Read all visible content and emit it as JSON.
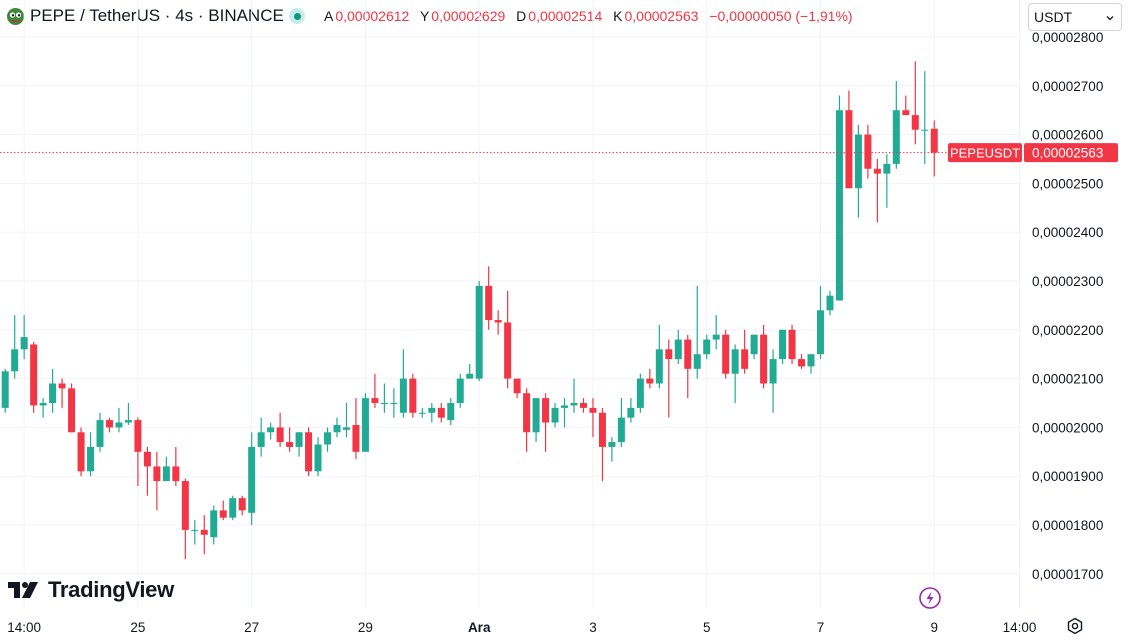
{
  "header": {
    "symbol_title": "PEPE / TetherUS · 4s · BINANCE",
    "open_label": "A",
    "open_value": "0,00002612",
    "high_label": "Y",
    "high_value": "0,00002629",
    "low_label": "D",
    "low_value": "0,00002514",
    "close_label": "K",
    "close_value": "0,00002563",
    "change": "−0,00000050 (−1,91%)"
  },
  "currency_select": {
    "value": "USDT"
  },
  "price_tag": {
    "symbol": "PEPEUSDT",
    "value": "0,00002563"
  },
  "watermark": {
    "text": "TradingView"
  },
  "colors": {
    "up": "#22ab94",
    "down": "#f23645",
    "grid": "#f0f3fa",
    "axis_text": "#131722"
  },
  "chart_data": {
    "type": "candlestick",
    "y_unit": "USDT",
    "ylim": [
      1.69e-05,
      2.84e-05
    ],
    "y_ticks": [
      {
        "value": 2.8e-05,
        "label": "0,00002800"
      },
      {
        "value": 2.7e-05,
        "label": "0,00002700"
      },
      {
        "value": 2.6e-05,
        "label": "0,00002600"
      },
      {
        "value": 2.5e-05,
        "label": "0,00002500"
      },
      {
        "value": 2.4e-05,
        "label": "0,00002400"
      },
      {
        "value": 2.3e-05,
        "label": "0,00002300"
      },
      {
        "value": 2.2e-05,
        "label": "0,00002200"
      },
      {
        "value": 2.1e-05,
        "label": "0,00002100"
      },
      {
        "value": 2e-05,
        "label": "0,00002000"
      },
      {
        "value": 1.9e-05,
        "label": "0,00001900"
      },
      {
        "value": 1.8e-05,
        "label": "0,00001800"
      },
      {
        "value": 1.7e-05,
        "label": "0,00001700"
      }
    ],
    "x_ticks": [
      {
        "index": 2,
        "label": "14:00",
        "bold": false
      },
      {
        "index": 14,
        "label": "25",
        "bold": false
      },
      {
        "index": 26,
        "label": "27",
        "bold": false
      },
      {
        "index": 38,
        "label": "29",
        "bold": false
      },
      {
        "index": 50,
        "label": "Ara",
        "bold": true
      },
      {
        "index": 62,
        "label": "3",
        "bold": false
      },
      {
        "index": 74,
        "label": "5",
        "bold": false
      },
      {
        "index": 86,
        "label": "7",
        "bold": false
      },
      {
        "index": 98,
        "label": "9",
        "bold": false
      },
      {
        "index": 107,
        "label": "14:00",
        "bold": false
      }
    ],
    "last_price": 2.563e-05,
    "candles": [
      [
        2.04e-05,
        2.12e-05,
        2.03e-05,
        2.115e-05
      ],
      [
        2.115e-05,
        2.23e-05,
        2.1e-05,
        2.16e-05
      ],
      [
        2.16e-05,
        2.23e-05,
        2.14e-05,
        2.185e-05
      ],
      [
        2.17e-05,
        2.175e-05,
        2.03e-05,
        2.045e-05
      ],
      [
        2.045e-05,
        2.06e-05,
        2.02e-05,
        2.05e-05
      ],
      [
        2.05e-05,
        2.12e-05,
        2.03e-05,
        2.09e-05
      ],
      [
        2.09e-05,
        2.1e-05,
        2.04e-05,
        2.08e-05
      ],
      [
        2.08e-05,
        2.09e-05,
        1.99e-05,
        1.99e-05
      ],
      [
        1.99e-05,
        2e-05,
        1.9e-05,
        1.91e-05
      ],
      [
        1.91e-05,
        1.99e-05,
        1.9e-05,
        1.96e-05
      ],
      [
        1.96e-05,
        2.03e-05,
        1.95e-05,
        2.015e-05
      ],
      [
        2.015e-05,
        2.02e-05,
        1.99e-05,
        2e-05
      ],
      [
        2e-05,
        2.04e-05,
        1.99e-05,
        2.01e-05
      ],
      [
        2.01e-05,
        2.05e-05,
        2.005e-05,
        2.015e-05
      ],
      [
        2.015e-05,
        2.02e-05,
        1.88e-05,
        1.95e-05
      ],
      [
        1.95e-05,
        1.96e-05,
        1.86e-05,
        1.92e-05
      ],
      [
        1.92e-05,
        1.95e-05,
        1.83e-05,
        1.89e-05
      ],
      [
        1.89e-05,
        1.94e-05,
        1.89e-05,
        1.92e-05
      ],
      [
        1.92e-05,
        1.96e-05,
        1.88e-05,
        1.89e-05
      ],
      [
        1.89e-05,
        1.895e-05,
        1.73e-05,
        1.79e-05
      ],
      [
        1.79e-05,
        1.81e-05,
        1.76e-05,
        1.79e-05
      ],
      [
        1.79e-05,
        1.82e-05,
        1.74e-05,
        1.78e-05
      ],
      [
        1.775e-05,
        1.84e-05,
        1.76e-05,
        1.83e-05
      ],
      [
        1.83e-05,
        1.85e-05,
        1.81e-05,
        1.815e-05
      ],
      [
        1.815e-05,
        1.86e-05,
        1.81e-05,
        1.855e-05
      ],
      [
        1.855e-05,
        1.86e-05,
        1.82e-05,
        1.83e-05
      ],
      [
        1.825e-05,
        1.99e-05,
        1.8e-05,
        1.96e-05
      ],
      [
        1.96e-05,
        2.02e-05,
        1.94e-05,
        1.99e-05
      ],
      [
        1.99e-05,
        2.01e-05,
        1.975e-05,
        2e-05
      ],
      [
        2e-05,
        2.03e-05,
        1.96e-05,
        1.97e-05
      ],
      [
        1.97e-05,
        2e-05,
        1.95e-05,
        1.96e-05
      ],
      [
        1.96e-05,
        1.99e-05,
        1.94e-05,
        1.99e-05
      ],
      [
        1.99e-05,
        2e-05,
        1.9e-05,
        1.91e-05
      ],
      [
        1.91e-05,
        1.98e-05,
        1.9e-05,
        1.965e-05
      ],
      [
        1.965e-05,
        2e-05,
        1.95e-05,
        1.99e-05
      ],
      [
        1.99e-05,
        2.02e-05,
        1.98e-05,
        2.005e-05
      ],
      [
        1.995e-05,
        2.05e-05,
        1.98e-05,
        2e-05
      ],
      [
        2.005e-05,
        2.06e-05,
        1.935e-05,
        1.95e-05
      ],
      [
        1.95e-05,
        2.07e-05,
        1.95e-05,
        2.06e-05
      ],
      [
        2.06e-05,
        2.11e-05,
        2.04e-05,
        2.05e-05
      ],
      [
        2.05e-05,
        2.09e-05,
        2.03e-05,
        2.05e-05
      ],
      [
        2.05e-05,
        2.08e-05,
        2.02e-05,
        2.05e-05
      ],
      [
        2.03e-05,
        2.16e-05,
        2.02e-05,
        2.1e-05
      ],
      [
        2.1e-05,
        2.11e-05,
        2.02e-05,
        2.03e-05
      ],
      [
        2.03e-05,
        2.04e-05,
        2.02e-05,
        2.03e-05
      ],
      [
        2.03e-05,
        2.05e-05,
        2.01e-05,
        2.04e-05
      ],
      [
        2.04e-05,
        2.05e-05,
        2.01e-05,
        2.02e-05
      ],
      [
        2.015e-05,
        2.06e-05,
        2.005e-05,
        2.05e-05
      ],
      [
        2.05e-05,
        2.11e-05,
        2.04e-05,
        2.1e-05
      ],
      [
        2.1e-05,
        2.13e-05,
        2.1e-05,
        2.11e-05
      ],
      [
        2.1e-05,
        2.3e-05,
        2.095e-05,
        2.29e-05
      ],
      [
        2.29e-05,
        2.33e-05,
        2.2e-05,
        2.22e-05
      ],
      [
        2.22e-05,
        2.24e-05,
        2.19e-05,
        2.215e-05
      ],
      [
        2.215e-05,
        2.28e-05,
        2.08e-05,
        2.1e-05
      ],
      [
        2.1e-05,
        2.1e-05,
        2.06e-05,
        2.07e-05
      ],
      [
        2.07e-05,
        2.08e-05,
        1.95e-05,
        1.99e-05
      ],
      [
        1.99e-05,
        2.06e-05,
        1.97e-05,
        2.06e-05
      ],
      [
        2.06e-05,
        2.07e-05,
        1.95e-05,
        2.01e-05
      ],
      [
        2.01e-05,
        2.05e-05,
        2e-05,
        2.04e-05
      ],
      [
        2.04e-05,
        2.06e-05,
        2e-05,
        2.045e-05
      ],
      [
        2.045e-05,
        2.1e-05,
        2.03e-05,
        2.05e-05
      ],
      [
        2.05e-05,
        2.06e-05,
        2.03e-05,
        2.04e-05
      ],
      [
        2.04e-05,
        2.06e-05,
        1.98e-05,
        2.03e-05
      ],
      [
        2.03e-05,
        2.04e-05,
        1.89e-05,
        1.96e-05
      ],
      [
        1.96e-05,
        1.98e-05,
        1.93e-05,
        1.97e-05
      ],
      [
        1.97e-05,
        2.06e-05,
        1.96e-05,
        2.02e-05
      ],
      [
        2.02e-05,
        2.06e-05,
        2.01e-05,
        2.04e-05
      ],
      [
        2.04e-05,
        2.11e-05,
        2.03e-05,
        2.1e-05
      ],
      [
        2.1e-05,
        2.12e-05,
        2.08e-05,
        2.09e-05
      ],
      [
        2.09e-05,
        2.21e-05,
        2.08e-05,
        2.16e-05
      ],
      [
        2.16e-05,
        2.18e-05,
        2.02e-05,
        2.14e-05
      ],
      [
        2.14e-05,
        2.2e-05,
        2.13e-05,
        2.18e-05
      ],
      [
        2.18e-05,
        2.19e-05,
        2.06e-05,
        2.12e-05
      ],
      [
        2.12e-05,
        2.29e-05,
        2.1e-05,
        2.15e-05
      ],
      [
        2.15e-05,
        2.19e-05,
        2.14e-05,
        2.18e-05
      ],
      [
        2.18e-05,
        2.23e-05,
        2.16e-05,
        2.19e-05
      ],
      [
        2.19e-05,
        2.2e-05,
        2.1e-05,
        2.11e-05
      ],
      [
        2.11e-05,
        2.17e-05,
        2.05e-05,
        2.16e-05
      ],
      [
        2.16e-05,
        2.2e-05,
        2.11e-05,
        2.12e-05
      ],
      [
        2.15e-05,
        2.19e-05,
        2.14e-05,
        2.19e-05
      ],
      [
        2.19e-05,
        2.21e-05,
        2.08e-05,
        2.09e-05
      ],
      [
        2.09e-05,
        2.16e-05,
        2.03e-05,
        2.14e-05
      ],
      [
        2.14e-05,
        2.2e-05,
        2.13e-05,
        2.2e-05
      ],
      [
        2.2e-05,
        2.21e-05,
        2.13e-05,
        2.14e-05
      ],
      [
        2.14e-05,
        2.15e-05,
        2.12e-05,
        2.125e-05
      ],
      [
        2.125e-05,
        2.15e-05,
        2.11e-05,
        2.15e-05
      ],
      [
        2.15e-05,
        2.29e-05,
        2.14e-05,
        2.24e-05
      ],
      [
        2.24e-05,
        2.28e-05,
        2.23e-05,
        2.27e-05
      ],
      [
        2.26e-05,
        2.68e-05,
        2.26e-05,
        2.65e-05
      ],
      [
        2.65e-05,
        2.69e-05,
        2.49e-05,
        2.49e-05
      ],
      [
        2.49e-05,
        2.62e-05,
        2.43e-05,
        2.6e-05
      ],
      [
        2.6e-05,
        2.62e-05,
        2.51e-05,
        2.53e-05
      ],
      [
        2.53e-05,
        2.55e-05,
        2.42e-05,
        2.52e-05
      ],
      [
        2.52e-05,
        2.56e-05,
        2.45e-05,
        2.54e-05
      ],
      [
        2.54e-05,
        2.71e-05,
        2.53e-05,
        2.65e-05
      ],
      [
        2.65e-05,
        2.68e-05,
        2.64e-05,
        2.64e-05
      ],
      [
        2.64e-05,
        2.75e-05,
        2.58e-05,
        2.61e-05
      ],
      [
        2.61e-05,
        2.73e-05,
        2.54e-05,
        2.61e-05
      ],
      [
        2.612e-05,
        2.629e-05,
        2.514e-05,
        2.563e-05
      ]
    ]
  }
}
